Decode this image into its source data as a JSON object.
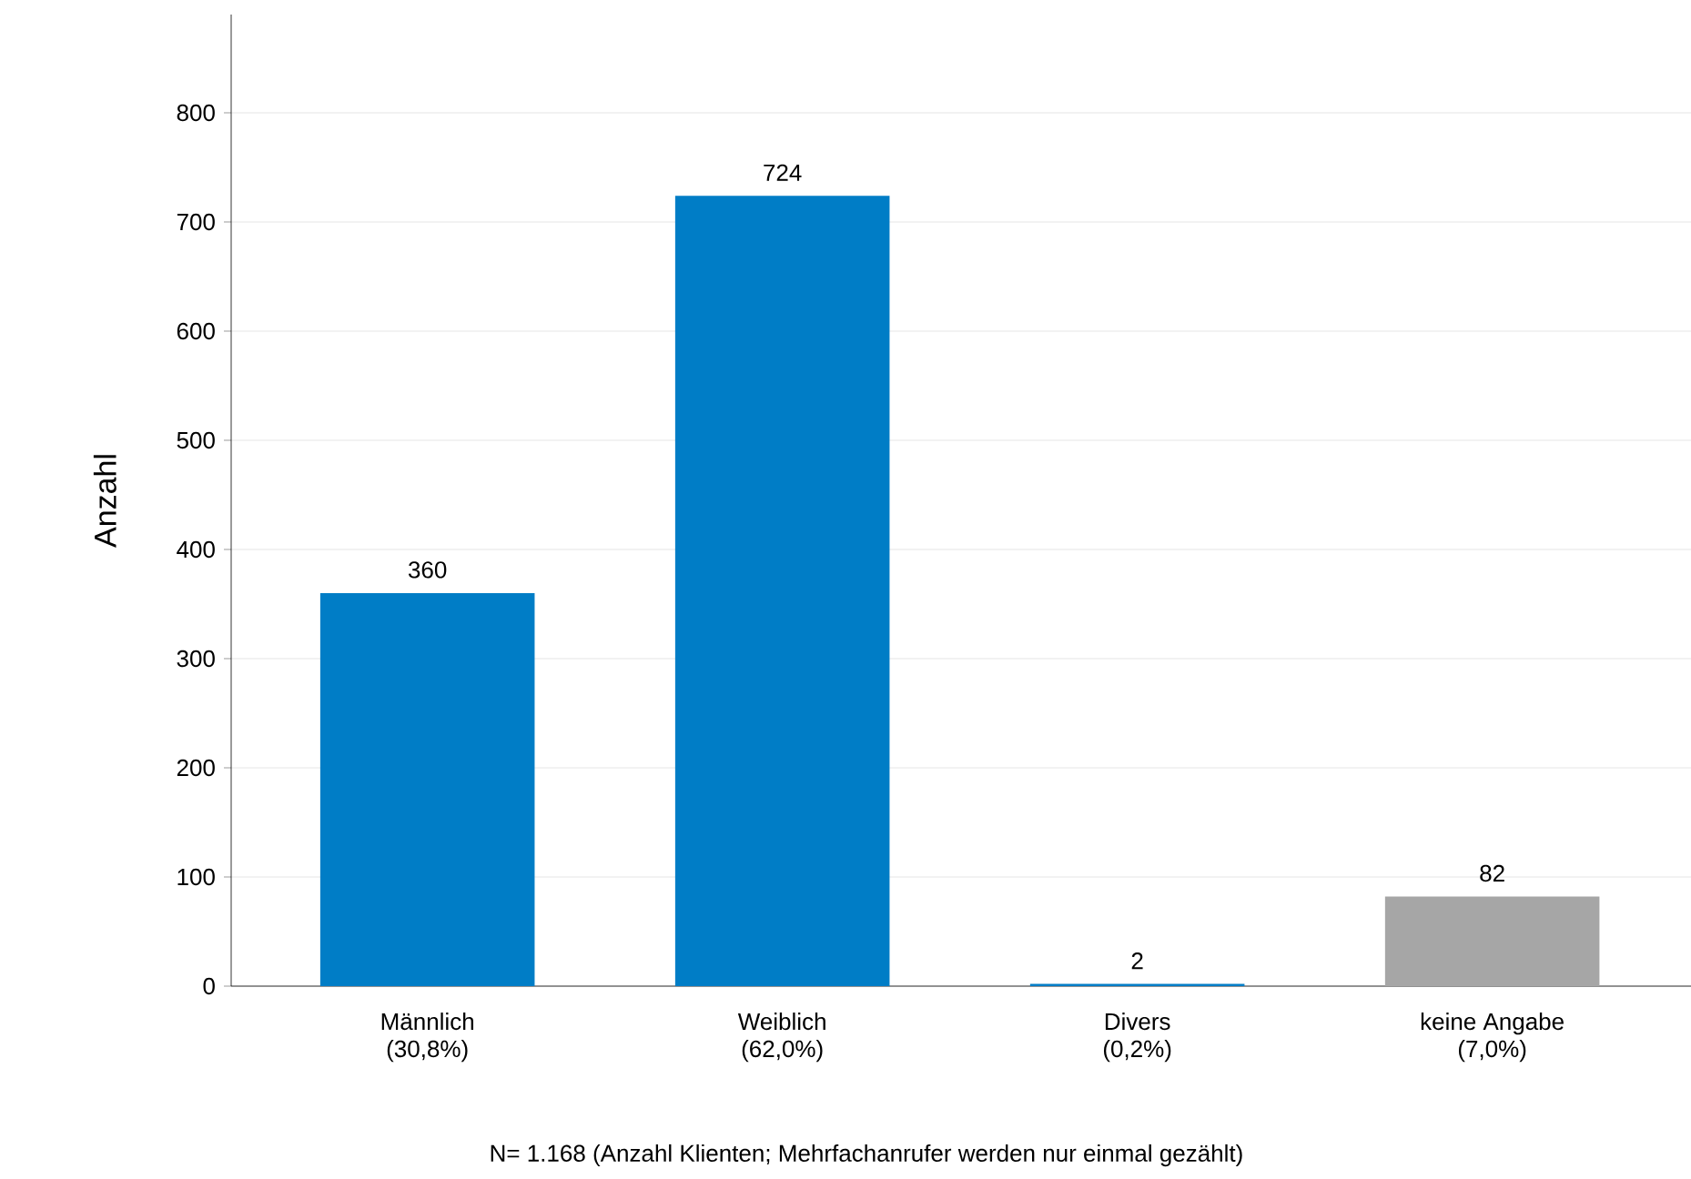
{
  "chart_data": {
    "type": "bar",
    "ylabel": "Anzahl",
    "categories": [
      "Männlich (30,8%)",
      "Weiblich (62,0%)",
      "Divers (0,2%)",
      "keine Angabe (7,0%)"
    ],
    "values": [
      360,
      724,
      2,
      82
    ],
    "colors": [
      "#007dc6",
      "#007dc6",
      "#007dc6",
      "#a6a6a6"
    ],
    "ylim": [
      0,
      890
    ],
    "yticks": [
      0,
      100,
      200,
      300,
      400,
      500,
      600,
      700,
      800
    ],
    "grid": "y",
    "data_labels": true,
    "annotations": [
      "N=  1.168 (Anzahl Klienten; Mehrfachanrufer werden nur einmal gezählt)"
    ]
  }
}
